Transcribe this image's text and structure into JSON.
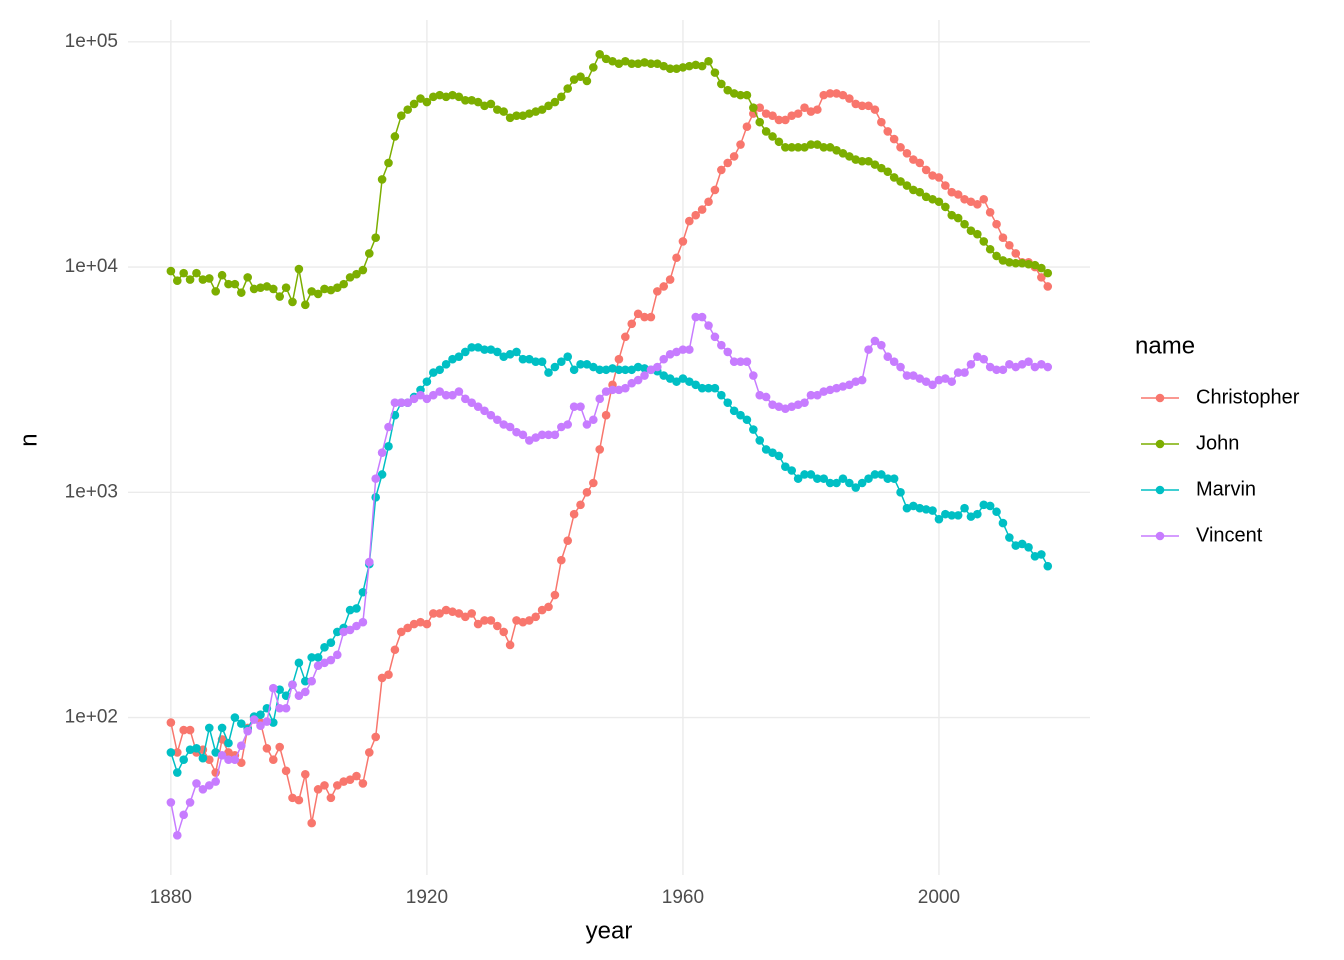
{
  "chart_data": {
    "type": "line",
    "x_label": "year",
    "y_label": "n",
    "legend_title": "name",
    "log_y": true,
    "grid": true,
    "legend_position": "right",
    "xlim": [
      1873.3,
      2023.6
    ],
    "xticks": [
      1880,
      1920,
      1960,
      2000
    ],
    "ylim": [
      20,
      125000
    ],
    "yticks": [
      {
        "value": 100,
        "label": "1e+02"
      },
      {
        "value": 1000,
        "label": "1e+03"
      },
      {
        "value": 10000,
        "label": "1e+04"
      },
      {
        "value": 100000,
        "label": "1e+05"
      }
    ],
    "x": [
      1880,
      1881,
      1882,
      1883,
      1884,
      1885,
      1886,
      1887,
      1888,
      1889,
      1890,
      1891,
      1892,
      1893,
      1894,
      1895,
      1896,
      1897,
      1898,
      1899,
      1900,
      1901,
      1902,
      1903,
      1904,
      1905,
      1906,
      1907,
      1908,
      1909,
      1910,
      1911,
      1912,
      1913,
      1914,
      1915,
      1916,
      1917,
      1918,
      1919,
      1920,
      1921,
      1922,
      1923,
      1924,
      1925,
      1926,
      1927,
      1928,
      1929,
      1930,
      1931,
      1932,
      1933,
      1934,
      1935,
      1936,
      1937,
      1938,
      1939,
      1940,
      1941,
      1942,
      1943,
      1944,
      1945,
      1946,
      1947,
      1948,
      1949,
      1950,
      1951,
      1952,
      1953,
      1954,
      1955,
      1956,
      1957,
      1958,
      1959,
      1960,
      1961,
      1962,
      1963,
      1964,
      1965,
      1966,
      1967,
      1968,
      1969,
      1970,
      1971,
      1972,
      1973,
      1974,
      1975,
      1976,
      1977,
      1978,
      1979,
      1980,
      1981,
      1982,
      1983,
      1984,
      1985,
      1986,
      1987,
      1988,
      1989,
      1990,
      1991,
      1992,
      1993,
      1994,
      1995,
      1996,
      1997,
      1998,
      1999,
      2000,
      2001,
      2002,
      2003,
      2004,
      2005,
      2006,
      2007,
      2008,
      2009,
      2010,
      2011,
      2012,
      2013,
      2014,
      2015,
      2016,
      2017
    ],
    "series": [
      {
        "name": "Christopher",
        "color": "#F8766D",
        "values": [
          95,
          70,
          88,
          88,
          70,
          72,
          65,
          57,
          80,
          70,
          68,
          63,
          90,
          100,
          95,
          73,
          65,
          74,
          58,
          44,
          43,
          56,
          34,
          48,
          50,
          44,
          50,
          52,
          53,
          55,
          51,
          70,
          82,
          150,
          155,
          200,
          240,
          250,
          260,
          265,
          260,
          290,
          290,
          300,
          295,
          290,
          280,
          290,
          260,
          270,
          270,
          255,
          240,
          210,
          270,
          265,
          270,
          280,
          300,
          310,
          350,
          500,
          610,
          800,
          880,
          1000,
          1100,
          1550,
          2200,
          3000,
          3900,
          4900,
          5600,
          6200,
          6000,
          6000,
          7800,
          8200,
          8800,
          11000,
          13000,
          16000,
          17000,
          18000,
          19500,
          22000,
          27000,
          29000,
          31000,
          35000,
          42000,
          48000,
          51000,
          48000,
          47000,
          45000,
          45000,
          47000,
          48000,
          51000,
          49000,
          50000,
          58000,
          59000,
          59000,
          58000,
          56000,
          53000,
          52000,
          52000,
          50000,
          44000,
          40000,
          37000,
          34000,
          32000,
          30000,
          29000,
          27000,
          25500,
          25000,
          23000,
          21500,
          21000,
          20000,
          19500,
          19000,
          20000,
          17500,
          15500,
          13500,
          12500,
          11500,
          10500,
          10500,
          10000,
          9000,
          8200
        ]
      },
      {
        "name": "John",
        "color": "#7CAE00",
        "values": [
          9600,
          8700,
          9400,
          8800,
          9400,
          8800,
          8900,
          7800,
          9200,
          8400,
          8400,
          7700,
          9000,
          8000,
          8100,
          8200,
          8000,
          7400,
          8100,
          7000,
          9800,
          6800,
          7800,
          7600,
          8000,
          7900,
          8100,
          8400,
          9000,
          9300,
          9700,
          11500,
          13500,
          24500,
          29000,
          38000,
          47000,
          50000,
          53000,
          56000,
          54000,
          57000,
          58000,
          57000,
          58000,
          57000,
          55000,
          55000,
          54000,
          52000,
          53000,
          50000,
          49000,
          46000,
          47000,
          47000,
          48000,
          49000,
          50000,
          52000,
          54000,
          57000,
          62000,
          68000,
          70000,
          67000,
          77000,
          88000,
          84000,
          82000,
          80000,
          82000,
          80000,
          80000,
          81000,
          80000,
          80000,
          78000,
          76000,
          76000,
          77000,
          78000,
          79000,
          78000,
          82000,
          73000,
          65000,
          61000,
          59000,
          58000,
          58000,
          51000,
          44000,
          40000,
          38000,
          36000,
          34000,
          34000,
          34000,
          34000,
          35000,
          35000,
          34000,
          34000,
          33000,
          32000,
          31000,
          30000,
          29500,
          29500,
          28500,
          27500,
          26500,
          25000,
          24000,
          23000,
          22000,
          21500,
          20500,
          20000,
          19500,
          18500,
          17000,
          16500,
          15500,
          14500,
          14000,
          13000,
          12000,
          11200,
          10700,
          10500,
          10400,
          10400,
          10300,
          10200,
          9900,
          9400
        ]
      },
      {
        "name": "Marvin",
        "color": "#00BFC4",
        "values": [
          70,
          57,
          65,
          72,
          73,
          66,
          90,
          70,
          90,
          77,
          100,
          94,
          89,
          101,
          103,
          110,
          95,
          133,
          125,
          140,
          175,
          145,
          185,
          185,
          205,
          215,
          240,
          250,
          300,
          305,
          360,
          480,
          950,
          1200,
          1600,
          2200,
          2500,
          2500,
          2650,
          2850,
          3100,
          3400,
          3500,
          3700,
          3900,
          4000,
          4200,
          4400,
          4400,
          4300,
          4300,
          4200,
          4000,
          4100,
          4200,
          3900,
          3900,
          3800,
          3800,
          3400,
          3600,
          3800,
          4000,
          3500,
          3700,
          3700,
          3600,
          3500,
          3500,
          3550,
          3500,
          3500,
          3500,
          3600,
          3550,
          3500,
          3450,
          3300,
          3200,
          3100,
          3200,
          3100,
          3000,
          2900,
          2900,
          2900,
          2700,
          2500,
          2300,
          2200,
          2100,
          1900,
          1700,
          1550,
          1500,
          1450,
          1300,
          1250,
          1150,
          1200,
          1200,
          1150,
          1150,
          1100,
          1100,
          1150,
          1100,
          1050,
          1100,
          1150,
          1200,
          1200,
          1150,
          1150,
          1000,
          850,
          870,
          850,
          840,
          830,
          760,
          800,
          790,
          790,
          850,
          780,
          800,
          880,
          870,
          820,
          730,
          630,
          580,
          590,
          570,
          520,
          530,
          470
        ]
      },
      {
        "name": "Vincent",
        "color": "#C77CFF",
        "values": [
          42,
          30,
          37,
          42,
          51,
          48,
          50,
          52,
          68,
          65,
          65,
          75,
          87,
          98,
          92,
          96,
          135,
          110,
          110,
          140,
          125,
          130,
          145,
          170,
          175,
          180,
          190,
          240,
          245,
          255,
          265,
          490,
          1150,
          1500,
          1950,
          2500,
          2500,
          2500,
          2600,
          2700,
          2600,
          2700,
          2800,
          2700,
          2700,
          2800,
          2600,
          2500,
          2400,
          2300,
          2200,
          2100,
          2000,
          1950,
          1850,
          1800,
          1700,
          1750,
          1800,
          1800,
          1800,
          1950,
          2000,
          2400,
          2400,
          2000,
          2100,
          2600,
          2800,
          2850,
          2850,
          2900,
          3050,
          3150,
          3300,
          3500,
          3600,
          3900,
          4100,
          4200,
          4300,
          4300,
          6000,
          6000,
          5500,
          4900,
          4500,
          4200,
          3800,
          3800,
          3800,
          3300,
          2700,
          2650,
          2450,
          2400,
          2350,
          2400,
          2450,
          2500,
          2700,
          2700,
          2800,
          2850,
          2900,
          2950,
          3000,
          3100,
          3150,
          4300,
          4700,
          4500,
          4000,
          3800,
          3600,
          3300,
          3300,
          3200,
          3100,
          3000,
          3150,
          3200,
          3100,
          3400,
          3400,
          3700,
          4000,
          3900,
          3600,
          3500,
          3500,
          3700,
          3600,
          3700,
          3800,
          3600,
          3700,
          3600
        ]
      }
    ]
  }
}
